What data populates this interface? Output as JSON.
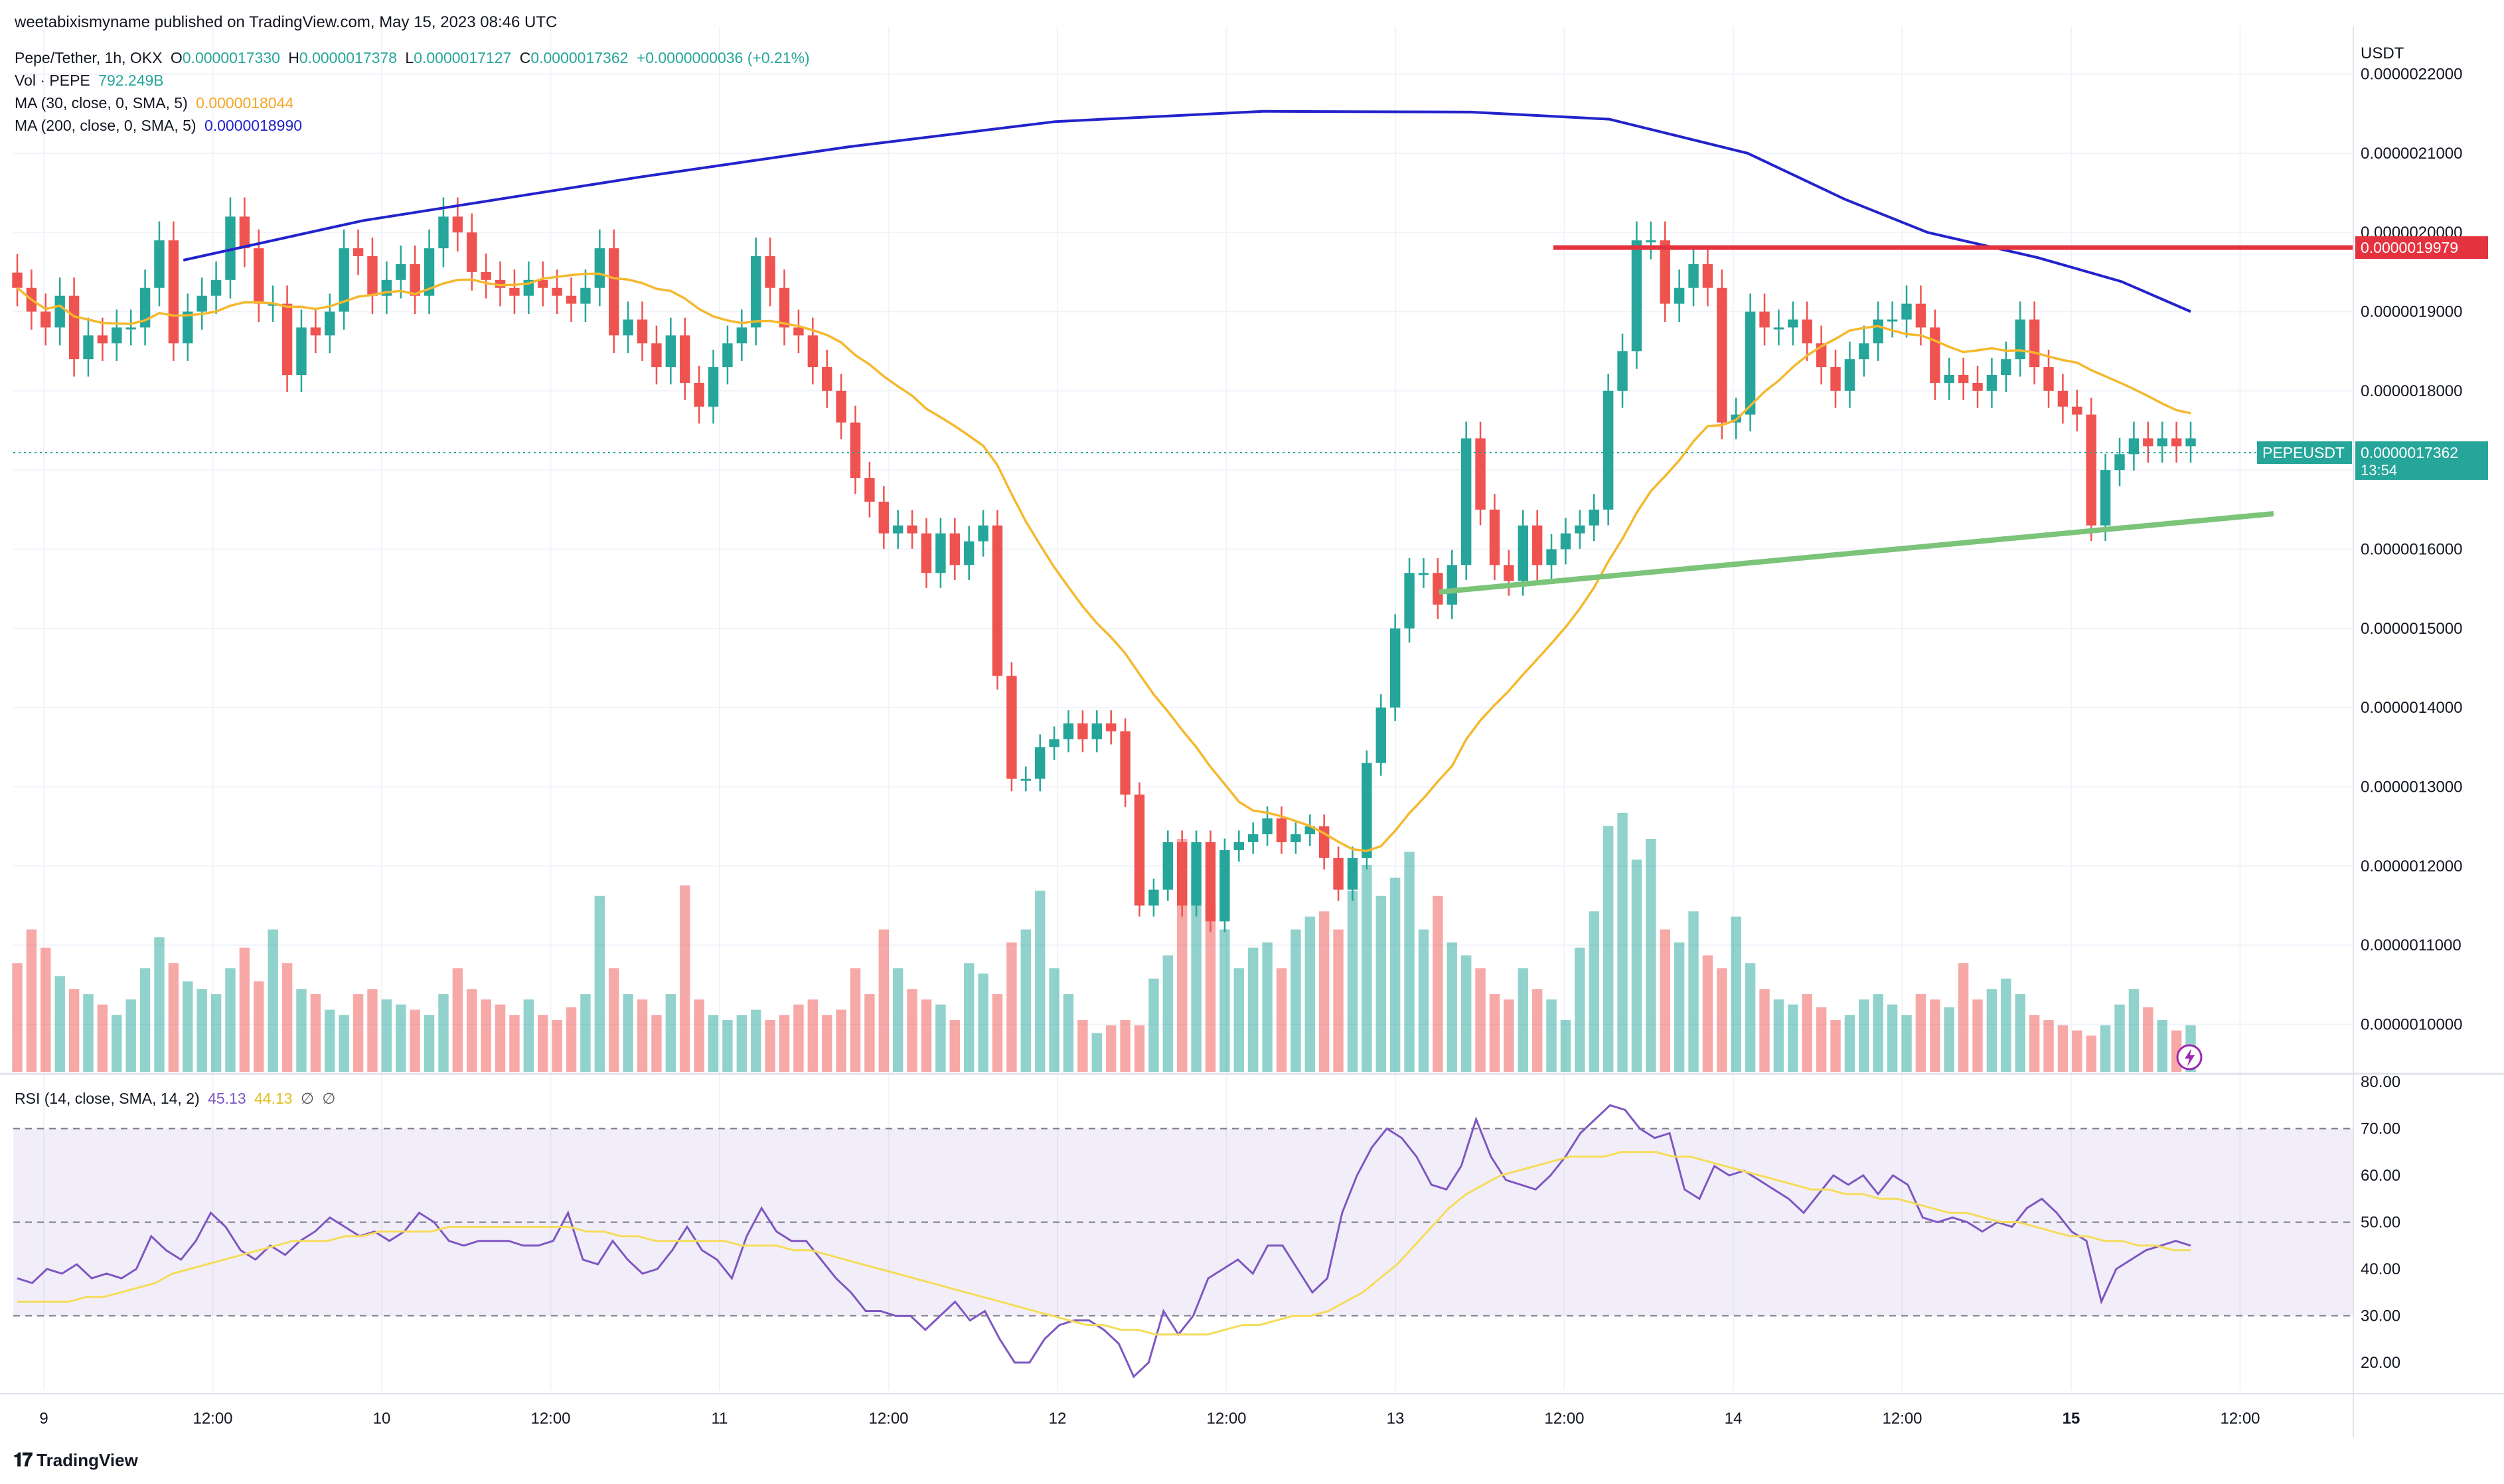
{
  "published": "weetabixismyname published on TradingView.com, May 15, 2023 08:46 UTC",
  "legend": {
    "symbol_line": "Pepe/Tether, 1h, OKX",
    "o_label": "O",
    "o_value": "0.0000017330",
    "h_label": "H",
    "h_value": "0.0000017378",
    "l_label": "L",
    "l_value": "0.0000017127",
    "c_label": "C",
    "c_value": "0.0000017362",
    "change": "+0.0000000036 (+0.21%)",
    "vol_label": "Vol · PEPE",
    "vol_value": "792.249B",
    "ma30_label": "MA (30, close, 0, SMA, 5)",
    "ma30_value": "0.0000018044",
    "ma200_label": "MA (200, close, 0, SMA, 5)",
    "ma200_value": "0.0000018990",
    "rsi_label": "RSI (14, close, SMA, 14, 2)",
    "rsi_value": "45.13",
    "rsi_ma_value": "44.13",
    "rsi_na1": "∅",
    "rsi_na2": "∅"
  },
  "axis": {
    "currency": "USDT",
    "price_ticks": [
      "0.0000022000",
      "0.0000021000",
      "0.0000020000",
      "0.0000019000",
      "0.0000018000",
      "0.0000017000",
      "0.0000016000",
      "0.0000015000",
      "0.0000014000",
      "0.0000013000",
      "0.0000012000",
      "0.0000011000",
      "0.0000010000"
    ],
    "rsi_ticks": [
      "80.00",
      "70.00",
      "60.00",
      "50.00",
      "40.00",
      "30.00",
      "20.00"
    ],
    "time_ticks": [
      "9",
      "12:00",
      "10",
      "12:00",
      "11",
      "12:00",
      "12",
      "12:00",
      "13",
      "12:00",
      "14",
      "12:00",
      "15",
      "12:00"
    ]
  },
  "badges": {
    "resistance": "0.0000019979",
    "symbol": "PEPEUSDT",
    "last_price": "0.0000017362",
    "countdown": "13:54"
  },
  "brand": "TradingView",
  "colors": {
    "up": "#26a69a",
    "down": "#ef5350",
    "ma30": "#f5b82e",
    "ma200": "#2323cc",
    "resistance": "#e5323f",
    "support": "#7cc47a",
    "rsi": "#7e57c2",
    "rsi_ma": "#f5dc5a"
  },
  "chart_data": {
    "type": "candlestick",
    "title": "Pepe/Tether, 1h, OKX",
    "xlabel": "",
    "ylabel": "USDT",
    "ylim": [
      9.4e-07,
      2.26e-06
    ],
    "x_range": [
      "2023-05-09 00:00",
      "2023-05-15 12:00"
    ],
    "closes": [
      1.93e-06,
      1.9e-06,
      1.88e-06,
      1.92e-06,
      1.84e-06,
      1.87e-06,
      1.86e-06,
      1.88e-06,
      1.88e-06,
      1.93e-06,
      1.99e-06,
      1.86e-06,
      1.9e-06,
      1.92e-06,
      1.94e-06,
      2.02e-06,
      1.98e-06,
      1.91e-06,
      1.91e-06,
      1.82e-06,
      1.88e-06,
      1.87e-06,
      1.9e-06,
      1.98e-06,
      1.97e-06,
      1.92e-06,
      1.94e-06,
      1.96e-06,
      1.92e-06,
      1.98e-06,
      2.02e-06,
      2e-06,
      1.95e-06,
      1.94e-06,
      1.93e-06,
      1.92e-06,
      1.94e-06,
      1.93e-06,
      1.92e-06,
      1.91e-06,
      1.93e-06,
      1.98e-06,
      1.87e-06,
      1.89e-06,
      1.86e-06,
      1.83e-06,
      1.87e-06,
      1.81e-06,
      1.78e-06,
      1.83e-06,
      1.86e-06,
      1.88e-06,
      1.97e-06,
      1.93e-06,
      1.88e-06,
      1.87e-06,
      1.83e-06,
      1.8e-06,
      1.76e-06,
      1.69e-06,
      1.66e-06,
      1.62e-06,
      1.63e-06,
      1.62e-06,
      1.57e-06,
      1.62e-06,
      1.58e-06,
      1.61e-06,
      1.63e-06,
      1.44e-06,
      1.31e-06,
      1.31e-06,
      1.35e-06,
      1.36e-06,
      1.38e-06,
      1.36e-06,
      1.38e-06,
      1.37e-06,
      1.29e-06,
      1.15e-06,
      1.17e-06,
      1.23e-06,
      1.15e-06,
      1.23e-06,
      1.13e-06,
      1.22e-06,
      1.23e-06,
      1.24e-06,
      1.26e-06,
      1.23e-06,
      1.24e-06,
      1.25e-06,
      1.21e-06,
      1.17e-06,
      1.21e-06,
      1.33e-06,
      1.4e-06,
      1.5e-06,
      1.57e-06,
      1.57e-06,
      1.53e-06,
      1.58e-06,
      1.74e-06,
      1.65e-06,
      1.58e-06,
      1.56e-06,
      1.63e-06,
      1.58e-06,
      1.6e-06,
      1.62e-06,
      1.63e-06,
      1.65e-06,
      1.8e-06,
      1.85e-06,
      1.99e-06,
      1.99e-06,
      1.91e-06,
      1.93e-06,
      1.96e-06,
      1.93e-06,
      1.76e-06,
      1.77e-06,
      1.9e-06,
      1.88e-06,
      1.88e-06,
      1.89e-06,
      1.86e-06,
      1.83e-06,
      1.8e-06,
      1.84e-06,
      1.86e-06,
      1.89e-06,
      1.89e-06,
      1.91e-06,
      1.88e-06,
      1.81e-06,
      1.82e-06,
      1.81e-06,
      1.8e-06,
      1.82e-06,
      1.84e-06,
      1.89e-06,
      1.83e-06,
      1.8e-06,
      1.78e-06,
      1.77e-06,
      1.63e-06,
      1.7e-06,
      1.72e-06,
      1.74e-06,
      1.73e-06,
      1.74e-06,
      1.73e-06,
      1.74e-06
    ]
  },
  "rsi_data": [
    38,
    37,
    40,
    39,
    41,
    38,
    39,
    38,
    40,
    47,
    44,
    42,
    46,
    52,
    49,
    44,
    42,
    45,
    43,
    46,
    48,
    51,
    49,
    47,
    48,
    46,
    48,
    52,
    50,
    46,
    45,
    46,
    46,
    46,
    45,
    45,
    46,
    52,
    42,
    41,
    46,
    42,
    39,
    40,
    44,
    49,
    44,
    42,
    38,
    47,
    53,
    48,
    46,
    46,
    42,
    38,
    35,
    31,
    31,
    30,
    30,
    27,
    30,
    33,
    29,
    31,
    25,
    20,
    20,
    25,
    28,
    29,
    29,
    27,
    24,
    17,
    20,
    31,
    26,
    30,
    38,
    40,
    42,
    39,
    45,
    45,
    40,
    35,
    38,
    52,
    60,
    66,
    70,
    68,
    64,
    58,
    57,
    62,
    72,
    64,
    59,
    58,
    57,
    60,
    64,
    69,
    72,
    75,
    74,
    70,
    68,
    69,
    57,
    55,
    62,
    60,
    61,
    59,
    57,
    55,
    52,
    56,
    60,
    58,
    60,
    56,
    60,
    58,
    51,
    50,
    51,
    50,
    48,
    50,
    49,
    53,
    55,
    52,
    48,
    46,
    33,
    40,
    42,
    44,
    45,
    46,
    45
  ],
  "rsi_ma_data": [
    33,
    33,
    33,
    33,
    34,
    34,
    35,
    36,
    37,
    39,
    40,
    41,
    42,
    43,
    44,
    45,
    46,
    46,
    46,
    47,
    47,
    48,
    48,
    48,
    48,
    49,
    49,
    49,
    49,
    49,
    49,
    49,
    49,
    48,
    48,
    47,
    47,
    46,
    46,
    46,
    46,
    46,
    45,
    45,
    45,
    44,
    44,
    43,
    42,
    41,
    40,
    39,
    38,
    37,
    36,
    35,
    34,
    33,
    32,
    31,
    30,
    29,
    28,
    28,
    27,
    27,
    26,
    26,
    26,
    26,
    27,
    28,
    28,
    29,
    30,
    30,
    31,
    33,
    35,
    38,
    41,
    45,
    49,
    53,
    56,
    58,
    60,
    61,
    62,
    63,
    64,
    64,
    64,
    65,
    65,
    65,
    64,
    64,
    63,
    62,
    61,
    60,
    59,
    58,
    57,
    57,
    56,
    56,
    55,
    55,
    54,
    53,
    52,
    52,
    51,
    50,
    50,
    49,
    48,
    47,
    47,
    46,
    46,
    45,
    45,
    44,
    44
  ],
  "volume_data": [
    0.42,
    0.55,
    0.48,
    0.37,
    0.32,
    0.3,
    0.26,
    0.22,
    0.28,
    0.4,
    0.52,
    0.42,
    0.35,
    0.32,
    0.3,
    0.4,
    0.48,
    0.35,
    0.55,
    0.42,
    0.32,
    0.3,
    0.24,
    0.22,
    0.3,
    0.32,
    0.28,
    0.26,
    0.24,
    0.22,
    0.3,
    0.4,
    0.32,
    0.28,
    0.26,
    0.22,
    0.28,
    0.22,
    0.2,
    0.25,
    0.3,
    0.68,
    0.4,
    0.3,
    0.28,
    0.22,
    0.3,
    0.72,
    0.28,
    0.22,
    0.2,
    0.22,
    0.24,
    0.2,
    0.22,
    0.26,
    0.28,
    0.22,
    0.24,
    0.4,
    0.3,
    0.55,
    0.4,
    0.32,
    0.28,
    0.26,
    0.2,
    0.42,
    0.38,
    0.3,
    0.5,
    0.55,
    0.7,
    0.4,
    0.3,
    0.2,
    0.15,
    0.18,
    0.2,
    0.18,
    0.36,
    0.45,
    0.9,
    0.75,
    0.65,
    0.55,
    0.4,
    0.48,
    0.5,
    0.4,
    0.55,
    0.6,
    0.62,
    0.55,
    0.7,
    0.8,
    0.68,
    0.75,
    0.85,
    0.55,
    0.68,
    0.5,
    0.45,
    0.4,
    0.3,
    0.28,
    0.4,
    0.32,
    0.28,
    0.2,
    0.48,
    0.62,
    0.95,
    1.0,
    0.82,
    0.9,
    0.55,
    0.5,
    0.62,
    0.45,
    0.4,
    0.6,
    0.42,
    0.32,
    0.28,
    0.26,
    0.3,
    0.25,
    0.2,
    0.22,
    0.28,
    0.3,
    0.26,
    0.22,
    0.3,
    0.28,
    0.25,
    0.42,
    0.28,
    0.32,
    0.36,
    0.3,
    0.22,
    0.2,
    0.18,
    0.16,
    0.14,
    0.18,
    0.26,
    0.32,
    0.25,
    0.2,
    0.16,
    0.18,
    0.2
  ]
}
